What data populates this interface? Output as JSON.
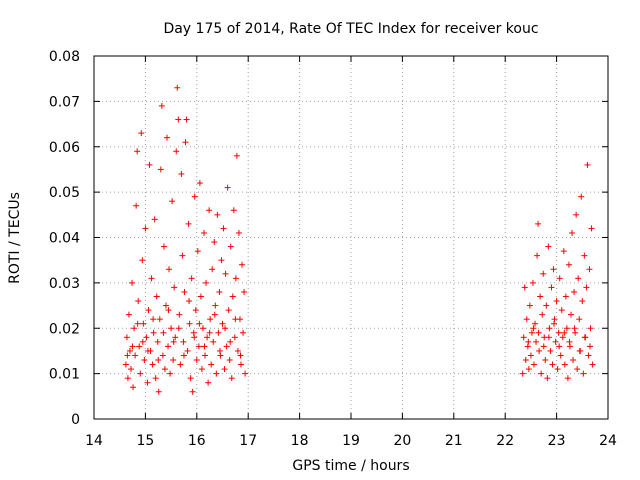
{
  "chart_data": {
    "type": "scatter",
    "title": "Day 175 of 2014, Rate Of TEC Index for receiver kouc",
    "xlabel": "GPS time / hours",
    "ylabel": "ROTI / TECUs",
    "xlim": [
      14,
      24
    ],
    "ylim": [
      0,
      0.08
    ],
    "xticks": [
      14,
      15,
      16,
      17,
      18,
      19,
      20,
      21,
      22,
      23,
      24
    ],
    "yticks": [
      0,
      0.01,
      0.02,
      0.03,
      0.04,
      0.05,
      0.06,
      0.07,
      0.08
    ],
    "ytick_labels": [
      "0",
      "0.01",
      "0.02",
      "0.03",
      "0.04",
      "0.05",
      "0.06",
      "0.07",
      "0.08"
    ],
    "grid": true,
    "marker": "+",
    "color": "#ff0000",
    "series": [
      {
        "name": "ROTI",
        "points": [
          [
            14.62,
            0.012
          ],
          [
            14.64,
            0.018
          ],
          [
            14.66,
            0.009
          ],
          [
            14.68,
            0.023
          ],
          [
            14.7,
            0.015
          ],
          [
            14.72,
            0.011
          ],
          [
            14.74,
            0.03
          ],
          [
            14.76,
            0.007
          ],
          [
            14.78,
            0.02
          ],
          [
            14.8,
            0.014
          ],
          [
            14.82,
            0.047
          ],
          [
            14.84,
            0.059
          ],
          [
            14.86,
            0.026
          ],
          [
            14.88,
            0.016
          ],
          [
            14.9,
            0.01
          ],
          [
            14.92,
            0.063
          ],
          [
            14.94,
            0.035
          ],
          [
            14.96,
            0.021
          ],
          [
            14.98,
            0.013
          ],
          [
            15.0,
            0.042
          ],
          [
            15.02,
            0.018
          ],
          [
            15.04,
            0.008
          ],
          [
            15.06,
            0.024
          ],
          [
            15.08,
            0.056
          ],
          [
            15.1,
            0.015
          ],
          [
            15.12,
            0.031
          ],
          [
            15.14,
            0.012
          ],
          [
            15.16,
            0.019
          ],
          [
            15.18,
            0.044
          ],
          [
            15.2,
            0.009
          ],
          [
            15.22,
            0.027
          ],
          [
            15.24,
            0.017
          ],
          [
            15.26,
            0.006
          ],
          [
            15.28,
            0.022
          ],
          [
            15.3,
            0.055
          ],
          [
            15.32,
            0.069
          ],
          [
            15.34,
            0.014
          ],
          [
            15.36,
            0.038
          ],
          [
            15.38,
            0.011
          ],
          [
            15.4,
            0.025
          ],
          [
            15.42,
            0.062
          ],
          [
            15.44,
            0.016
          ],
          [
            15.46,
            0.033
          ],
          [
            15.48,
            0.01
          ],
          [
            15.5,
            0.02
          ],
          [
            15.52,
            0.048
          ],
          [
            15.54,
            0.013
          ],
          [
            15.56,
            0.029
          ],
          [
            15.58,
            0.018
          ],
          [
            15.6,
            0.059
          ],
          [
            15.62,
            0.073
          ],
          [
            15.64,
            0.066
          ],
          [
            15.66,
            0.023
          ],
          [
            15.68,
            0.012
          ],
          [
            15.7,
            0.054
          ],
          [
            15.72,
            0.036
          ],
          [
            15.74,
            0.017
          ],
          [
            15.76,
            0.028
          ],
          [
            15.78,
            0.061
          ],
          [
            15.8,
            0.066
          ],
          [
            15.82,
            0.015
          ],
          [
            15.84,
            0.043
          ],
          [
            15.86,
            0.021
          ],
          [
            15.88,
            0.009
          ],
          [
            15.9,
            0.031
          ],
          [
            15.92,
            0.006
          ],
          [
            15.94,
            0.019
          ],
          [
            15.96,
            0.049
          ],
          [
            15.98,
            0.024
          ],
          [
            16.0,
            0.013
          ],
          [
            16.02,
            0.037
          ],
          [
            16.04,
            0.016
          ],
          [
            16.06,
            0.052
          ],
          [
            16.08,
            0.027
          ],
          [
            16.1,
            0.011
          ],
          [
            16.12,
            0.02
          ],
          [
            16.14,
            0.041
          ],
          [
            16.16,
            0.014
          ],
          [
            16.18,
            0.03
          ],
          [
            16.2,
            0.018
          ],
          [
            16.22,
            0.008
          ],
          [
            16.24,
            0.046
          ],
          [
            16.26,
            0.022
          ],
          [
            16.28,
            0.012
          ],
          [
            16.3,
            0.033
          ],
          [
            16.32,
            0.017
          ],
          [
            16.34,
            0.039
          ],
          [
            16.36,
            0.025
          ],
          [
            16.38,
            0.01
          ],
          [
            16.4,
            0.045
          ],
          [
            16.42,
            0.019
          ],
          [
            16.44,
            0.028
          ],
          [
            16.46,
            0.014
          ],
          [
            16.48,
            0.035
          ],
          [
            16.5,
            0.021
          ],
          [
            16.52,
            0.042
          ],
          [
            16.54,
            0.011
          ],
          [
            16.56,
            0.032
          ],
          [
            16.58,
            0.016
          ],
          [
            16.6,
            0.051
          ],
          [
            16.62,
            0.024
          ],
          [
            16.64,
            0.013
          ],
          [
            16.66,
            0.038
          ],
          [
            16.68,
            0.009
          ],
          [
            16.7,
            0.027
          ],
          [
            16.72,
            0.046
          ],
          [
            16.74,
            0.018
          ],
          [
            16.76,
            0.031
          ],
          [
            16.78,
            0.058
          ],
          [
            16.8,
            0.015
          ],
          [
            16.82,
            0.041
          ],
          [
            16.84,
            0.022
          ],
          [
            16.86,
            0.012
          ],
          [
            16.88,
            0.034
          ],
          [
            16.9,
            0.019
          ],
          [
            16.92,
            0.028
          ],
          [
            16.94,
            0.01
          ],
          [
            14.65,
            0.014
          ],
          [
            14.75,
            0.016
          ],
          [
            14.85,
            0.021
          ],
          [
            14.95,
            0.017
          ],
          [
            15.05,
            0.015
          ],
          [
            15.15,
            0.022
          ],
          [
            15.25,
            0.013
          ],
          [
            15.35,
            0.019
          ],
          [
            15.45,
            0.024
          ],
          [
            15.55,
            0.017
          ],
          [
            15.65,
            0.02
          ],
          [
            15.75,
            0.014
          ],
          [
            15.85,
            0.026
          ],
          [
            15.95,
            0.018
          ],
          [
            16.05,
            0.021
          ],
          [
            16.15,
            0.016
          ],
          [
            16.25,
            0.019
          ],
          [
            16.35,
            0.023
          ],
          [
            16.45,
            0.015
          ],
          [
            16.55,
            0.02
          ],
          [
            16.65,
            0.017
          ],
          [
            16.75,
            0.022
          ],
          [
            16.85,
            0.014
          ],
          [
            22.34,
            0.01
          ],
          [
            22.36,
            0.018
          ],
          [
            22.38,
            0.029
          ],
          [
            22.4,
            0.013
          ],
          [
            22.42,
            0.022
          ],
          [
            22.44,
            0.016
          ],
          [
            22.46,
            0.011
          ],
          [
            22.48,
            0.025
          ],
          [
            22.5,
            0.014
          ],
          [
            22.52,
            0.019
          ],
          [
            22.54,
            0.03
          ],
          [
            22.56,
            0.012
          ],
          [
            22.58,
            0.021
          ],
          [
            22.6,
            0.017
          ],
          [
            22.62,
            0.036
          ],
          [
            22.64,
            0.043
          ],
          [
            22.66,
            0.015
          ],
          [
            22.68,
            0.027
          ],
          [
            22.7,
            0.01
          ],
          [
            22.72,
            0.023
          ],
          [
            22.74,
            0.032
          ],
          [
            22.76,
            0.018
          ],
          [
            22.78,
            0.013
          ],
          [
            22.8,
            0.025
          ],
          [
            22.82,
            0.009
          ],
          [
            22.84,
            0.038
          ],
          [
            22.86,
            0.02
          ],
          [
            22.88,
            0.015
          ],
          [
            22.9,
            0.029
          ],
          [
            22.92,
            0.012
          ],
          [
            22.94,
            0.033
          ],
          [
            22.96,
            0.022
          ],
          [
            22.98,
            0.017
          ],
          [
            23.0,
            0.026
          ],
          [
            23.02,
            0.011
          ],
          [
            23.04,
            0.019
          ],
          [
            23.06,
            0.031
          ],
          [
            23.08,
            0.014
          ],
          [
            23.1,
            0.024
          ],
          [
            23.12,
            0.018
          ],
          [
            23.14,
            0.037
          ],
          [
            23.16,
            0.012
          ],
          [
            23.18,
            0.027
          ],
          [
            23.2,
            0.02
          ],
          [
            23.22,
            0.009
          ],
          [
            23.24,
            0.034
          ],
          [
            23.26,
            0.016
          ],
          [
            23.28,
            0.023
          ],
          [
            23.3,
            0.041
          ],
          [
            23.32,
            0.013
          ],
          [
            23.34,
            0.028
          ],
          [
            23.36,
            0.019
          ],
          [
            23.38,
            0.045
          ],
          [
            23.4,
            0.011
          ],
          [
            23.42,
            0.031
          ],
          [
            23.44,
            0.022
          ],
          [
            23.46,
            0.015
          ],
          [
            23.48,
            0.049
          ],
          [
            23.5,
            0.026
          ],
          [
            23.52,
            0.01
          ],
          [
            23.54,
            0.036
          ],
          [
            23.56,
            0.018
          ],
          [
            23.58,
            0.029
          ],
          [
            23.6,
            0.056
          ],
          [
            23.62,
            0.014
          ],
          [
            23.64,
            0.033
          ],
          [
            23.66,
            0.02
          ],
          [
            23.68,
            0.042
          ],
          [
            23.7,
            0.012
          ],
          [
            22.45,
            0.017
          ],
          [
            22.55,
            0.02
          ],
          [
            22.65,
            0.019
          ],
          [
            22.75,
            0.016
          ],
          [
            22.85,
            0.018
          ],
          [
            22.95,
            0.021
          ],
          [
            23.05,
            0.016
          ],
          [
            23.15,
            0.019
          ],
          [
            23.25,
            0.017
          ],
          [
            23.35,
            0.02
          ],
          [
            23.45,
            0.015
          ],
          [
            23.55,
            0.018
          ],
          [
            23.65,
            0.016
          ]
        ]
      }
    ]
  }
}
